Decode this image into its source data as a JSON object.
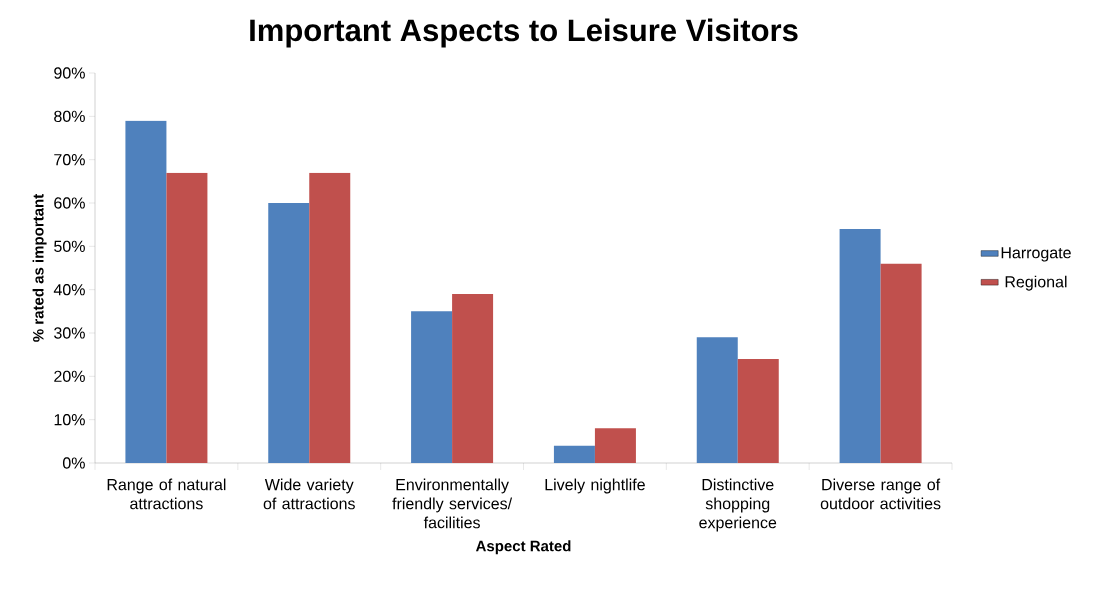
{
  "chart_data": {
    "type": "bar",
    "title": "Important Aspects to Leisure Visitors",
    "xlabel": "Aspect Rated",
    "ylabel": "% rated as important",
    "categories": [
      "Range of natural attractions",
      "Wide variety of attractions",
      "Environmentally friendly services/ facilities",
      "Lively nightlife",
      "Distinctive shopping experience",
      "Diverse range of outdoor activities"
    ],
    "series": [
      {
        "name": "Harrogate",
        "color": "#4f81bd",
        "values": [
          79,
          60,
          35,
          4,
          29,
          54
        ]
      },
      {
        "name": "Regional",
        "color": "#c0504d",
        "values": [
          67,
          67,
          39,
          8,
          24,
          46
        ]
      }
    ],
    "ylim": [
      0,
      90
    ],
    "yticks": [
      {
        "value": 0,
        "label": "0%"
      },
      {
        "value": 10,
        "label": "10%"
      },
      {
        "value": 20,
        "label": "20%"
      },
      {
        "value": 30,
        "label": "30%"
      },
      {
        "value": 40,
        "label": "40%"
      },
      {
        "value": 50,
        "label": "50%"
      },
      {
        "value": 60,
        "label": "60%"
      },
      {
        "value": 70,
        "label": "70%"
      },
      {
        "value": 80,
        "label": "80%"
      },
      {
        "value": 90,
        "label": "90%"
      }
    ],
    "grid": false,
    "legend": "right"
  }
}
